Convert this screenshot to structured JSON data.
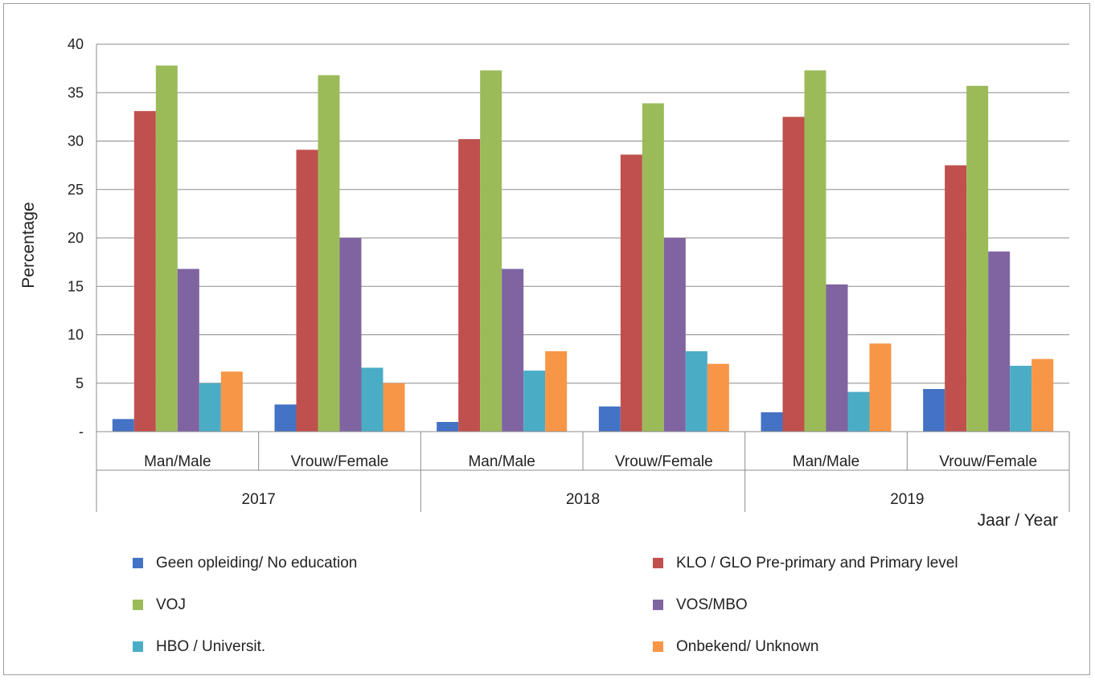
{
  "chart_data": {
    "type": "bar",
    "title": "",
    "ylabel": "Percentage",
    "xlabel": "Jaar / Year",
    "ylim": [
      0,
      40
    ],
    "yticks": [
      0,
      5,
      10,
      15,
      20,
      25,
      30,
      35,
      40
    ],
    "ytick_labels": [
      "-",
      "5",
      "10",
      "15",
      "20",
      "25",
      "30",
      "35",
      "40"
    ],
    "grid": true,
    "legend_position": "bottom",
    "groups": [
      {
        "label": "2017",
        "categories": [
          "Man/Male",
          "Vrouw/Female"
        ]
      },
      {
        "label": "2018",
        "categories": [
          "Man/Male",
          "Vrouw/Female"
        ]
      },
      {
        "label": "2019",
        "categories": [
          "Man/Male",
          "Vrouw/Female"
        ]
      }
    ],
    "categories": [
      "Man/Male",
      "Vrouw/Female",
      "Man/Male",
      "Vrouw/Female",
      "Man/Male",
      "Vrouw/Female"
    ],
    "series": [
      {
        "name": "Geen opleiding/ No education",
        "color": "#4472C4",
        "values": [
          1.3,
          2.8,
          1.0,
          2.6,
          2.0,
          4.4
        ]
      },
      {
        "name": "KLO / GLO Pre-primary and Primary level",
        "color": "#C0504D",
        "values": [
          33.1,
          29.1,
          30.2,
          28.6,
          32.5,
          27.5
        ]
      },
      {
        "name": "VOJ",
        "color": "#9BBB59",
        "values": [
          37.8,
          36.8,
          37.3,
          33.9,
          37.3,
          35.7
        ]
      },
      {
        "name": "VOS/MBO",
        "color": "#8064A2",
        "values": [
          16.8,
          20.0,
          16.8,
          20.0,
          15.2,
          18.6
        ]
      },
      {
        "name": "HBO / Universit.",
        "color": "#4BACC6",
        "values": [
          5.0,
          6.6,
          6.3,
          8.3,
          4.1,
          6.8
        ]
      },
      {
        "name": "Onbekend/ Unknown",
        "color": "#F79646",
        "values": [
          6.2,
          5.0,
          8.3,
          7.0,
          9.1,
          7.5
        ]
      }
    ]
  }
}
